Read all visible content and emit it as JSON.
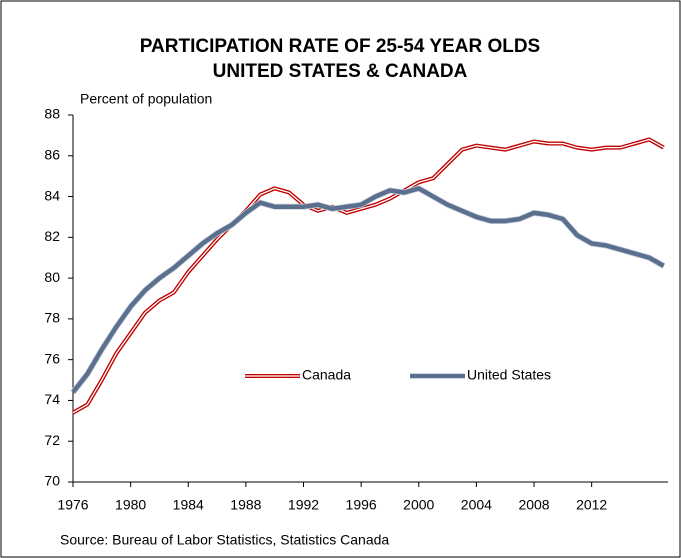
{
  "chart_data": {
    "type": "line",
    "title": "PARTICIPATION RATE OF 25-54 YEAR OLDS",
    "subtitle": "UNITED STATES & CANADA",
    "y_label": "Percent of population",
    "source": "Source: Bureau of Labor Statistics, Statistics Canada",
    "x": [
      1976,
      1977,
      1978,
      1979,
      1980,
      1981,
      1982,
      1983,
      1984,
      1985,
      1986,
      1987,
      1988,
      1989,
      1990,
      1991,
      1992,
      1993,
      1994,
      1995,
      1996,
      1997,
      1998,
      1999,
      2000,
      2001,
      2002,
      2003,
      2004,
      2005,
      2006,
      2007,
      2008,
      2009,
      2010,
      2011,
      2012,
      2013,
      2014,
      2015,
      2016,
      2017
    ],
    "series": [
      {
        "name": "Canada",
        "color": "#c00000",
        "values": [
          73.4,
          73.8,
          75.0,
          76.3,
          77.3,
          78.3,
          78.9,
          79.3,
          80.3,
          81.1,
          81.9,
          82.6,
          83.3,
          84.1,
          84.4,
          84.2,
          83.6,
          83.3,
          83.5,
          83.2,
          83.4,
          83.6,
          83.9,
          84.3,
          84.7,
          84.9,
          85.6,
          86.3,
          86.5,
          86.4,
          86.3,
          86.5,
          86.7,
          86.6,
          86.6,
          86.4,
          86.3,
          86.4,
          86.4,
          86.6,
          86.8,
          86.4
        ]
      },
      {
        "name": "United States",
        "color": "#5b6f8f",
        "values": [
          74.4,
          75.3,
          76.5,
          77.6,
          78.6,
          79.4,
          80.0,
          80.5,
          81.1,
          81.7,
          82.2,
          82.6,
          83.2,
          83.7,
          83.5,
          83.5,
          83.5,
          83.6,
          83.4,
          83.5,
          83.6,
          84.0,
          84.3,
          84.2,
          84.4,
          84.0,
          83.6,
          83.3,
          83.0,
          82.8,
          82.8,
          82.9,
          83.2,
          83.1,
          82.9,
          82.1,
          81.7,
          81.6,
          81.4,
          81.2,
          81.0,
          80.6
        ]
      }
    ],
    "xlim": [
      1976,
      2017.3
    ],
    "xticks": [
      1976,
      1980,
      1984,
      1988,
      1992,
      1996,
      2000,
      2004,
      2008,
      2012
    ],
    "ylim": [
      70,
      88
    ],
    "yticks": [
      70,
      72,
      74,
      76,
      78,
      80,
      82,
      84,
      86,
      88
    ],
    "grid": false,
    "legend": "center"
  }
}
